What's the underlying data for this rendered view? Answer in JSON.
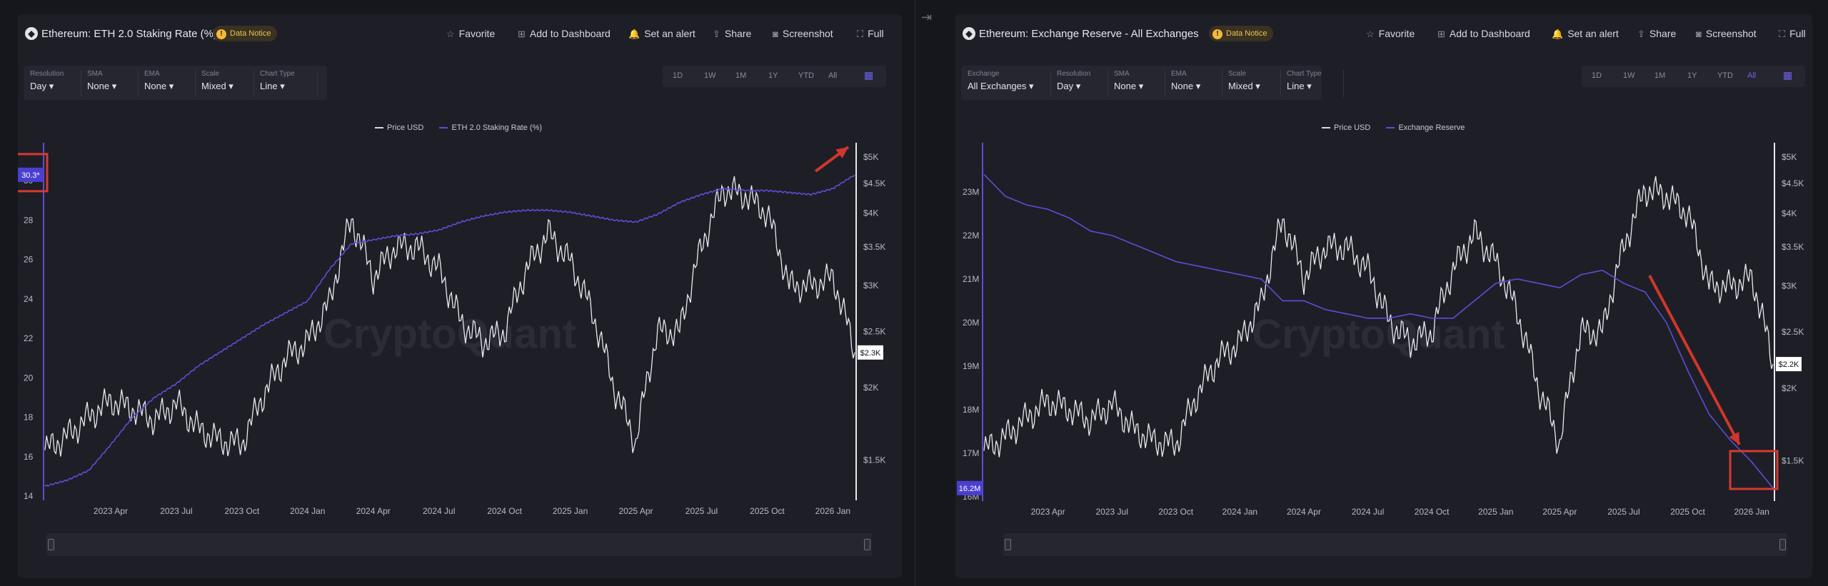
{
  "left": {
    "title": "Ethereum: ETH 2.0 Staking Rate (%)",
    "notice": "Data Notice",
    "actions": [
      {
        "icon": "star-icon",
        "glyph": "☆",
        "label": "Favorite"
      },
      {
        "icon": "dashboard-icon",
        "glyph": "⊞",
        "label": "Add to Dashboard"
      },
      {
        "icon": "bell-icon",
        "glyph": "🔔",
        "label": "Set an alert"
      },
      {
        "icon": "share-icon",
        "glyph": "⇪",
        "label": "Share"
      },
      {
        "icon": "camera-icon",
        "glyph": "◙",
        "label": "Screenshot"
      },
      {
        "icon": "fullscreen-icon",
        "glyph": "⛶",
        "label": "Full"
      }
    ],
    "controls": [
      {
        "label": "Resolution",
        "value": "Day"
      },
      {
        "label": "SMA",
        "value": "None"
      },
      {
        "label": "EMA",
        "value": "None"
      },
      {
        "label": "Scale",
        "value": "Mixed"
      },
      {
        "label": "Chart Type",
        "value": "Line"
      }
    ],
    "ranges": [
      "1D",
      "1W",
      "1M",
      "1Y",
      "YTD",
      "All"
    ],
    "active_range": "",
    "watermark": "CryptoQuant"
  },
  "right": {
    "title": "Ethereum: Exchange Reserve - All Exchanges",
    "notice": "Data Notice",
    "actions": [
      {
        "icon": "star-icon",
        "glyph": "☆",
        "label": "Favorite"
      },
      {
        "icon": "dashboard-icon",
        "glyph": "⊞",
        "label": "Add to Dashboard"
      },
      {
        "icon": "bell-icon",
        "glyph": "🔔",
        "label": "Set an alert"
      },
      {
        "icon": "share-icon",
        "glyph": "⇪",
        "label": "Share"
      },
      {
        "icon": "camera-icon",
        "glyph": "◙",
        "label": "Screenshot"
      },
      {
        "icon": "fullscreen-icon",
        "glyph": "⛶",
        "label": "Full"
      }
    ],
    "controls": [
      {
        "label": "Exchange",
        "value": "All Exchanges"
      },
      {
        "label": "Resolution",
        "value": "Day"
      },
      {
        "label": "SMA",
        "value": "None"
      },
      {
        "label": "EMA",
        "value": "None"
      },
      {
        "label": "Scale",
        "value": "Mixed"
      },
      {
        "label": "Chart Type",
        "value": "Line"
      }
    ],
    "ranges": [
      "1D",
      "1W",
      "1M",
      "1Y",
      "YTD",
      "All"
    ],
    "active_range": "All",
    "watermark": "CryptoQuant"
  },
  "colors": {
    "price": "#e8e8ee",
    "metric": "#5b4fd6",
    "highlight": "#d63a30",
    "arrow": "#d0362d"
  },
  "chart_data": [
    {
      "type": "line",
      "title": "Ethereum: ETH 2.0 Staking Rate (%)",
      "x_ticks": [
        "2023 Apr",
        "2023 Jul",
        "2023 Oct",
        "2024 Jan",
        "2024 Apr",
        "2024 Jul",
        "2024 Oct",
        "2025 Jan",
        "2025 Apr",
        "2025 Jul",
        "2025 Oct",
        "2026 Jan"
      ],
      "y_left": {
        "ticks": [
          14,
          16,
          18,
          20,
          22,
          24,
          26,
          28,
          30
        ],
        "range": [
          14,
          31.2
        ]
      },
      "y_right": {
        "ticks": [
          "$1.5K",
          "$2K",
          "$2.5K",
          "$3K",
          "$3.5K",
          "$4K",
          "$4.5K",
          "$5K"
        ],
        "scale": "log",
        "range": [
          1300,
          5000
        ]
      },
      "legend": [
        "Price USD",
        "ETH 2.0 Staking Rate (%)"
      ],
      "current_labels": {
        "left": "30.3*",
        "right": "$2.3K"
      },
      "series": [
        {
          "name": "Price USD",
          "axis": "right",
          "x": [
            "2023 Jan",
            "2023 Feb",
            "2023 Mar",
            "2023 Apr",
            "2023 May",
            "2023 Jun",
            "2023 Jul",
            "2023 Aug",
            "2023 Sep",
            "2023 Oct",
            "2023 Nov",
            "2023 Dec",
            "2024 Jan",
            "2024 Feb",
            "2024 Mar",
            "2024 Apr",
            "2024 May",
            "2024 Jun",
            "2024 Jul",
            "2024 Aug",
            "2024 Sep",
            "2024 Oct",
            "2024 Nov",
            "2024 Dec",
            "2025 Jan",
            "2025 Feb",
            "2025 Mar",
            "2025 Apr",
            "2025 May",
            "2025 Jun",
            "2025 Jul",
            "2025 Aug",
            "2025 Sep",
            "2025 Oct",
            "2025 Nov",
            "2025 Dec",
            "2026 Jan",
            "2026 Feb"
          ],
          "values": [
            1560,
            1650,
            1780,
            1900,
            1840,
            1760,
            1880,
            1700,
            1620,
            1600,
            1950,
            2250,
            2400,
            2800,
            3900,
            3100,
            3500,
            3500,
            3200,
            2600,
            2400,
            2500,
            3200,
            3700,
            3300,
            2700,
            2000,
            1600,
            2500,
            2500,
            3500,
            4400,
            4300,
            4000,
            3000,
            3000,
            3100,
            2300
          ]
        },
        {
          "name": "ETH 2.0 Staking Rate (%)",
          "axis": "left",
          "x": [
            "2023 Jan",
            "2023 Feb",
            "2023 Mar",
            "2023 Apr",
            "2023 May",
            "2023 Jun",
            "2023 Jul",
            "2023 Aug",
            "2023 Sep",
            "2023 Oct",
            "2023 Nov",
            "2023 Dec",
            "2024 Jan",
            "2024 Feb",
            "2024 Mar",
            "2024 Apr",
            "2024 May",
            "2024 Jun",
            "2024 Jul",
            "2024 Aug",
            "2024 Sep",
            "2024 Oct",
            "2024 Nov",
            "2024 Dec",
            "2025 Jan",
            "2025 Feb",
            "2025 Mar",
            "2025 Apr",
            "2025 May",
            "2025 Jun",
            "2025 Jul",
            "2025 Aug",
            "2025 Sep",
            "2025 Oct",
            "2025 Nov",
            "2025 Dec",
            "2026 Jan",
            "2026 Feb"
          ],
          "values": [
            14.5,
            14.8,
            15.3,
            16.6,
            18.0,
            19.0,
            19.7,
            20.6,
            21.3,
            22.0,
            22.7,
            23.3,
            23.9,
            25.5,
            26.8,
            27.0,
            27.2,
            27.3,
            27.5,
            27.9,
            28.2,
            28.4,
            28.5,
            28.5,
            28.4,
            28.2,
            28.0,
            27.9,
            28.3,
            28.9,
            29.3,
            29.6,
            29.5,
            29.5,
            29.4,
            29.3,
            29.6,
            30.3
          ]
        }
      ]
    },
    {
      "type": "line",
      "title": "Ethereum: Exchange Reserve - All Exchanges",
      "x_ticks": [
        "2023 Apr",
        "2023 Jul",
        "2023 Oct",
        "2024 Jan",
        "2024 Apr",
        "2024 Jul",
        "2024 Oct",
        "2025 Jan",
        "2025 Apr",
        "2025 Jul",
        "2025 Oct",
        "2026 Jan"
      ],
      "y_left": {
        "ticks": [
          "16M",
          "17M",
          "18M",
          "19M",
          "20M",
          "21M",
          "22M",
          "23M"
        ],
        "range": [
          16000000,
          23800000
        ]
      },
      "y_right": {
        "ticks": [
          "$1.5K",
          "$2K",
          "$2.5K",
          "$3K",
          "$3.5K",
          "$4K",
          "$4.5K",
          "$5K"
        ],
        "scale": "log",
        "range": [
          1300,
          5000
        ]
      },
      "legend": [
        "Price USD",
        "Exchange Reserve"
      ],
      "current_labels": {
        "left": "16.2M",
        "right": "$2.2K"
      },
      "series": [
        {
          "name": "Price USD",
          "axis": "right",
          "x": [
            "2023 Jan",
            "2023 Feb",
            "2023 Mar",
            "2023 Apr",
            "2023 May",
            "2023 Jun",
            "2023 Jul",
            "2023 Aug",
            "2023 Sep",
            "2023 Oct",
            "2023 Nov",
            "2023 Dec",
            "2024 Jan",
            "2024 Feb",
            "2024 Mar",
            "2024 Apr",
            "2024 May",
            "2024 Jun",
            "2024 Jul",
            "2024 Aug",
            "2024 Sep",
            "2024 Oct",
            "2024 Nov",
            "2024 Dec",
            "2025 Jan",
            "2025 Feb",
            "2025 Mar",
            "2025 Apr",
            "2025 May",
            "2025 Jun",
            "2025 Jul",
            "2025 Aug",
            "2025 Sep",
            "2025 Oct",
            "2025 Nov",
            "2025 Dec",
            "2026 Jan",
            "2026 Feb"
          ],
          "values": [
            1560,
            1650,
            1780,
            1900,
            1840,
            1760,
            1880,
            1700,
            1620,
            1600,
            1950,
            2250,
            2400,
            2800,
            3900,
            3100,
            3500,
            3500,
            3200,
            2600,
            2400,
            2500,
            3200,
            3700,
            3300,
            2700,
            2000,
            1600,
            2500,
            2500,
            3500,
            4400,
            4300,
            4000,
            3000,
            3000,
            3100,
            2200
          ]
        },
        {
          "name": "Exchange Reserve",
          "axis": "left",
          "x": [
            "2023 Jan",
            "2023 Feb",
            "2023 Mar",
            "2023 Apr",
            "2023 May",
            "2023 Jun",
            "2023 Jul",
            "2023 Aug",
            "2023 Sep",
            "2023 Oct",
            "2023 Nov",
            "2023 Dec",
            "2024 Jan",
            "2024 Feb",
            "2024 Mar",
            "2024 Apr",
            "2024 May",
            "2024 Jun",
            "2024 Jul",
            "2024 Aug",
            "2024 Sep",
            "2024 Oct",
            "2024 Nov",
            "2024 Dec",
            "2025 Jan",
            "2025 Feb",
            "2025 Mar",
            "2025 Apr",
            "2025 May",
            "2025 Jun",
            "2025 Jul",
            "2025 Aug",
            "2025 Sep",
            "2025 Oct",
            "2025 Nov",
            "2025 Dec",
            "2026 Jan",
            "2026 Feb"
          ],
          "values": [
            23400000,
            22900000,
            22700000,
            22600000,
            22400000,
            22100000,
            22000000,
            21800000,
            21600000,
            21400000,
            21300000,
            21200000,
            21100000,
            21000000,
            20500000,
            20500000,
            20300000,
            20200000,
            20100000,
            20100000,
            20200000,
            20100000,
            20100000,
            20500000,
            20900000,
            21000000,
            20900000,
            20800000,
            21100000,
            21200000,
            20900000,
            20700000,
            20000000,
            18900000,
            17900000,
            17300000,
            16800000,
            16200000
          ]
        }
      ]
    }
  ]
}
